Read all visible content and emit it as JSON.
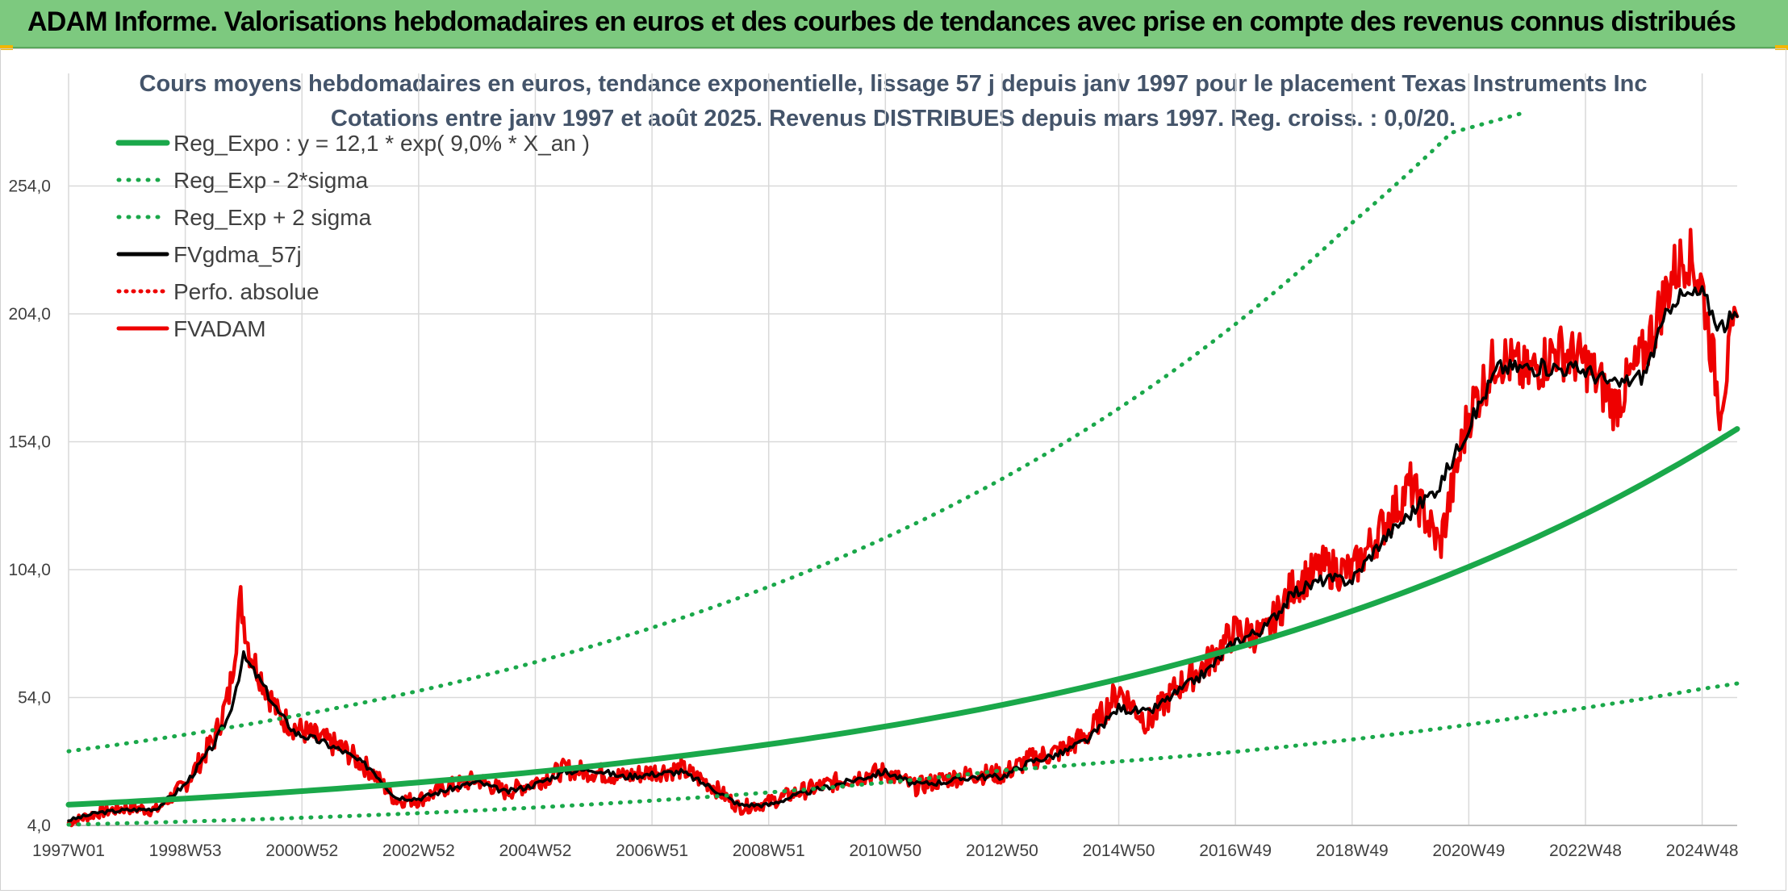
{
  "header": {
    "title": "ADAM Informe. Valorisations hebdomadaires en euros et des courbes de tendances avec prise en compte des revenus connus distribués"
  },
  "chart_data": {
    "type": "line",
    "title": "Cours moyens hebdomadaires en euros, tendance exponentielle, lissage 57 j depuis janv 1997 pour le placement Texas Instruments Inc",
    "subtitle": "Cotations entre janv 1997 et août 2025. Revenus DISTRIBUES depuis mars 1997. Reg. croiss. : 0,0/20.",
    "xlabel": "",
    "ylabel": "",
    "x_range": [
      1997.0,
      2025.6
    ],
    "ylim": [
      4.0,
      298.0
    ],
    "y_ticks": [
      "4,0",
      "54,0",
      "104,0",
      "154,0",
      "204,0",
      "254,0"
    ],
    "y_tick_values": [
      4,
      54,
      104,
      154,
      204,
      254
    ],
    "x_tick_labels": [
      "1997W01",
      "1998W53",
      "2000W52",
      "2002W52",
      "2004W52",
      "2006W51",
      "2008W51",
      "2010W50",
      "2012W50",
      "2014W50",
      "2016W49",
      "2018W49",
      "2020W49",
      "2022W48",
      "2024W48"
    ],
    "x_tick_values": [
      1997.0,
      1999.0,
      2001.0,
      2003.0,
      2005.0,
      2007.0,
      2009.0,
      2011.0,
      2013.0,
      2015.0,
      2017.0,
      2019.0,
      2021.0,
      2023.0,
      2025.0
    ],
    "grid": true,
    "legend_position": "top-left",
    "colors": {
      "green": "#1aa84a",
      "red": "#ee0000",
      "black": "#000000",
      "title": "#44546a"
    },
    "series": [
      {
        "name": "Reg_Expo : y = 12,1 * exp( 9,0% *  X_an )",
        "style": "solid-green-thick",
        "x": [
          1997.0,
          1999.0,
          2001.0,
          2003.0,
          2005.0,
          2007.0,
          2009.0,
          2011.0,
          2013.0,
          2015.0,
          2017.0,
          2019.0,
          2021.0,
          2023.0,
          2025.0,
          2025.6
        ],
        "y": [
          12.1,
          14.5,
          17.4,
          20.8,
          24.9,
          29.8,
          35.7,
          42.7,
          51.1,
          61.2,
          73.3,
          87.8,
          105.1,
          125.8,
          150.7,
          159.0
        ]
      },
      {
        "name": "Reg_Exp - 2*sigma",
        "style": "dotted-green",
        "x": [
          1997.0,
          1999.0,
          2001.0,
          2003.0,
          2005.0,
          2007.0,
          2009.0,
          2011.0,
          2013.0,
          2015.0,
          2017.0,
          2019.0,
          2021.0,
          2023.0,
          2025.0,
          2025.6
        ],
        "y": [
          4.3,
          5.5,
          7.0,
          8.8,
          11.0,
          13.7,
          16.9,
          20.8,
          25.5,
          29.0,
          32.8,
          37.6,
          43.4,
          50.0,
          57.4,
          59.5
        ]
      },
      {
        "name": "Reg_Exp + 2 sigma",
        "style": "dotted-green",
        "x": [
          1997.0,
          1999.0,
          2001.0,
          2003.0,
          2005.0,
          2007.0,
          2009.0,
          2011.0,
          2013.0,
          2015.0,
          2017.0,
          2019.0,
          2020.7,
          2022.0
        ],
        "y": [
          33.0,
          39.5,
          47.3,
          56.6,
          67.8,
          81.3,
          97.3,
          116.5,
          139.5,
          167.0,
          200.0,
          239.6,
          274.8,
          283.0
        ]
      },
      {
        "name": "FVgdma_57j",
        "style": "solid-black",
        "x": [
          1997.0,
          1997.5,
          1998.0,
          1998.5,
          1999.0,
          1999.5,
          1999.75,
          2000.0,
          2000.3,
          2000.6,
          2000.9,
          2001.3,
          2001.7,
          2002.2,
          2002.6,
          2003.0,
          2003.5,
          2004.0,
          2004.5,
          2005.0,
          2005.5,
          2006.0,
          2006.5,
          2007.0,
          2007.5,
          2008.0,
          2008.5,
          2009.0,
          2009.5,
          2010.0,
          2010.5,
          2011.0,
          2011.5,
          2012.0,
          2012.5,
          2013.0,
          2013.5,
          2014.0,
          2014.5,
          2015.0,
          2015.5,
          2016.0,
          2016.5,
          2017.0,
          2017.5,
          2018.0,
          2018.5,
          2019.0,
          2019.5,
          2020.0,
          2020.5,
          2021.0,
          2021.5,
          2022.0,
          2022.5,
          2023.0,
          2023.5,
          2024.0,
          2024.5,
          2025.0,
          2025.3,
          2025.6
        ],
        "y": [
          6,
          9,
          10,
          10.5,
          20,
          36,
          47,
          70,
          60,
          48,
          40,
          37,
          33,
          26,
          15,
          14.5,
          18,
          21,
          17,
          20,
          25,
          26,
          23,
          24,
          25,
          19,
          12,
          12,
          16,
          19,
          22,
          25,
          20,
          21,
          23,
          23,
          29,
          32,
          38,
          50,
          48,
          56,
          64,
          76,
          81,
          95,
          100,
          100,
          115,
          126,
          137,
          160,
          183,
          183,
          183,
          182,
          176,
          180,
          210,
          212,
          199,
          203
        ]
      },
      {
        "name": "Perfo. absolue",
        "style": "dotted-red",
        "x": [],
        "y": []
      },
      {
        "name": "FVADAM",
        "style": "solid-red",
        "x": [
          1997.0,
          1997.5,
          1998.0,
          1998.5,
          1999.0,
          1999.5,
          1999.75,
          1999.95,
          2000.1,
          2000.3,
          2000.6,
          2000.9,
          2001.3,
          2001.7,
          2002.2,
          2002.6,
          2003.0,
          2003.5,
          2004.0,
          2004.5,
          2005.0,
          2005.5,
          2006.0,
          2006.5,
          2007.0,
          2007.5,
          2008.0,
          2008.5,
          2009.0,
          2009.5,
          2010.0,
          2010.5,
          2011.0,
          2011.5,
          2012.0,
          2012.5,
          2013.0,
          2013.5,
          2014.0,
          2014.5,
          2015.0,
          2015.5,
          2016.0,
          2016.5,
          2017.0,
          2017.5,
          2018.0,
          2018.5,
          2019.0,
          2019.5,
          2020.0,
          2020.5,
          2021.0,
          2021.5,
          2022.0,
          2022.5,
          2023.0,
          2023.5,
          2024.0,
          2024.5,
          2024.75,
          2025.0,
          2025.3,
          2025.6
        ],
        "y": [
          5,
          9,
          11,
          10,
          20,
          38,
          55,
          92,
          72,
          62,
          47,
          42,
          38,
          34,
          25,
          14,
          14,
          19,
          22,
          17,
          21,
          26,
          25,
          23,
          25,
          26,
          20,
          11,
          13,
          17,
          20,
          23,
          25,
          19,
          22,
          24,
          24,
          30,
          33,
          40,
          57,
          44,
          58,
          67,
          80,
          78,
          98,
          105,
          103,
          120,
          137,
          113,
          165,
          188,
          180,
          190,
          185,
          168,
          188,
          220,
          228,
          215,
          168,
          203
        ]
      }
    ]
  }
}
